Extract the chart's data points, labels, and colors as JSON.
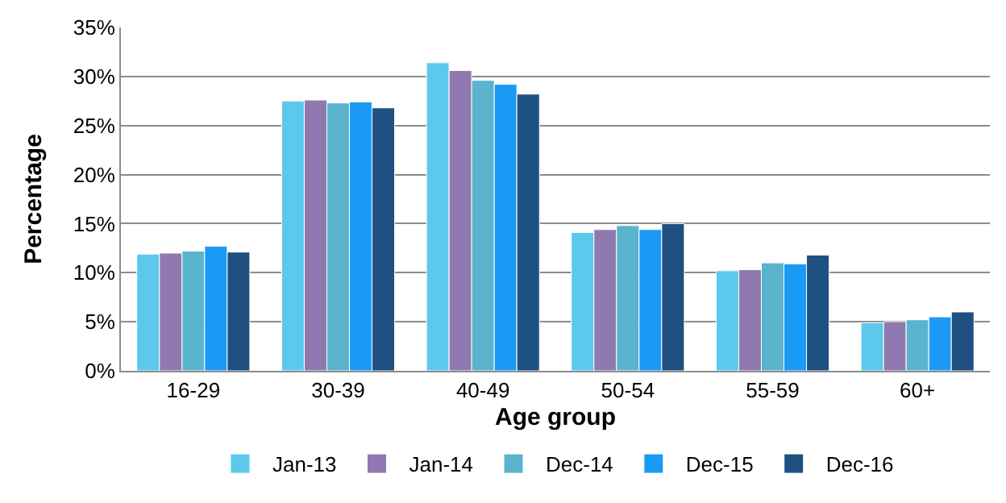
{
  "chart_data": {
    "type": "bar",
    "xlabel": "Age group",
    "ylabel": "Percentage",
    "categories": [
      "16-29",
      "30-39",
      "40-49",
      "50-54",
      "55-59",
      "60+"
    ],
    "series": [
      {
        "name": "Jan-13",
        "color": "#5bc8ec",
        "values": [
          11.9,
          27.5,
          31.4,
          14.1,
          10.2,
          4.9
        ]
      },
      {
        "name": "Jan-14",
        "color": "#9079b0",
        "values": [
          12.0,
          27.6,
          30.6,
          14.4,
          10.3,
          5.0
        ]
      },
      {
        "name": "Dec-14",
        "color": "#5ab4ce",
        "values": [
          12.2,
          27.3,
          29.6,
          14.8,
          11.0,
          5.2
        ]
      },
      {
        "name": "Dec-15",
        "color": "#1b9af5",
        "values": [
          12.7,
          27.4,
          29.2,
          14.4,
          10.9,
          5.5
        ]
      },
      {
        "name": "Dec-16",
        "color": "#1f5082",
        "values": [
          12.1,
          26.8,
          28.2,
          15.0,
          11.8,
          6.0
        ]
      }
    ],
    "ylim": [
      0,
      35
    ],
    "yticks": [
      {
        "value": 0,
        "label": "0%"
      },
      {
        "value": 5,
        "label": "5%"
      },
      {
        "value": 10,
        "label": "10%"
      },
      {
        "value": 15,
        "label": "15%"
      },
      {
        "value": 20,
        "label": "20%"
      },
      {
        "value": 25,
        "label": "25%"
      },
      {
        "value": 30,
        "label": "30%"
      },
      {
        "value": 35,
        "label": "35%"
      }
    ],
    "grid": "y",
    "legend": "bottom"
  }
}
